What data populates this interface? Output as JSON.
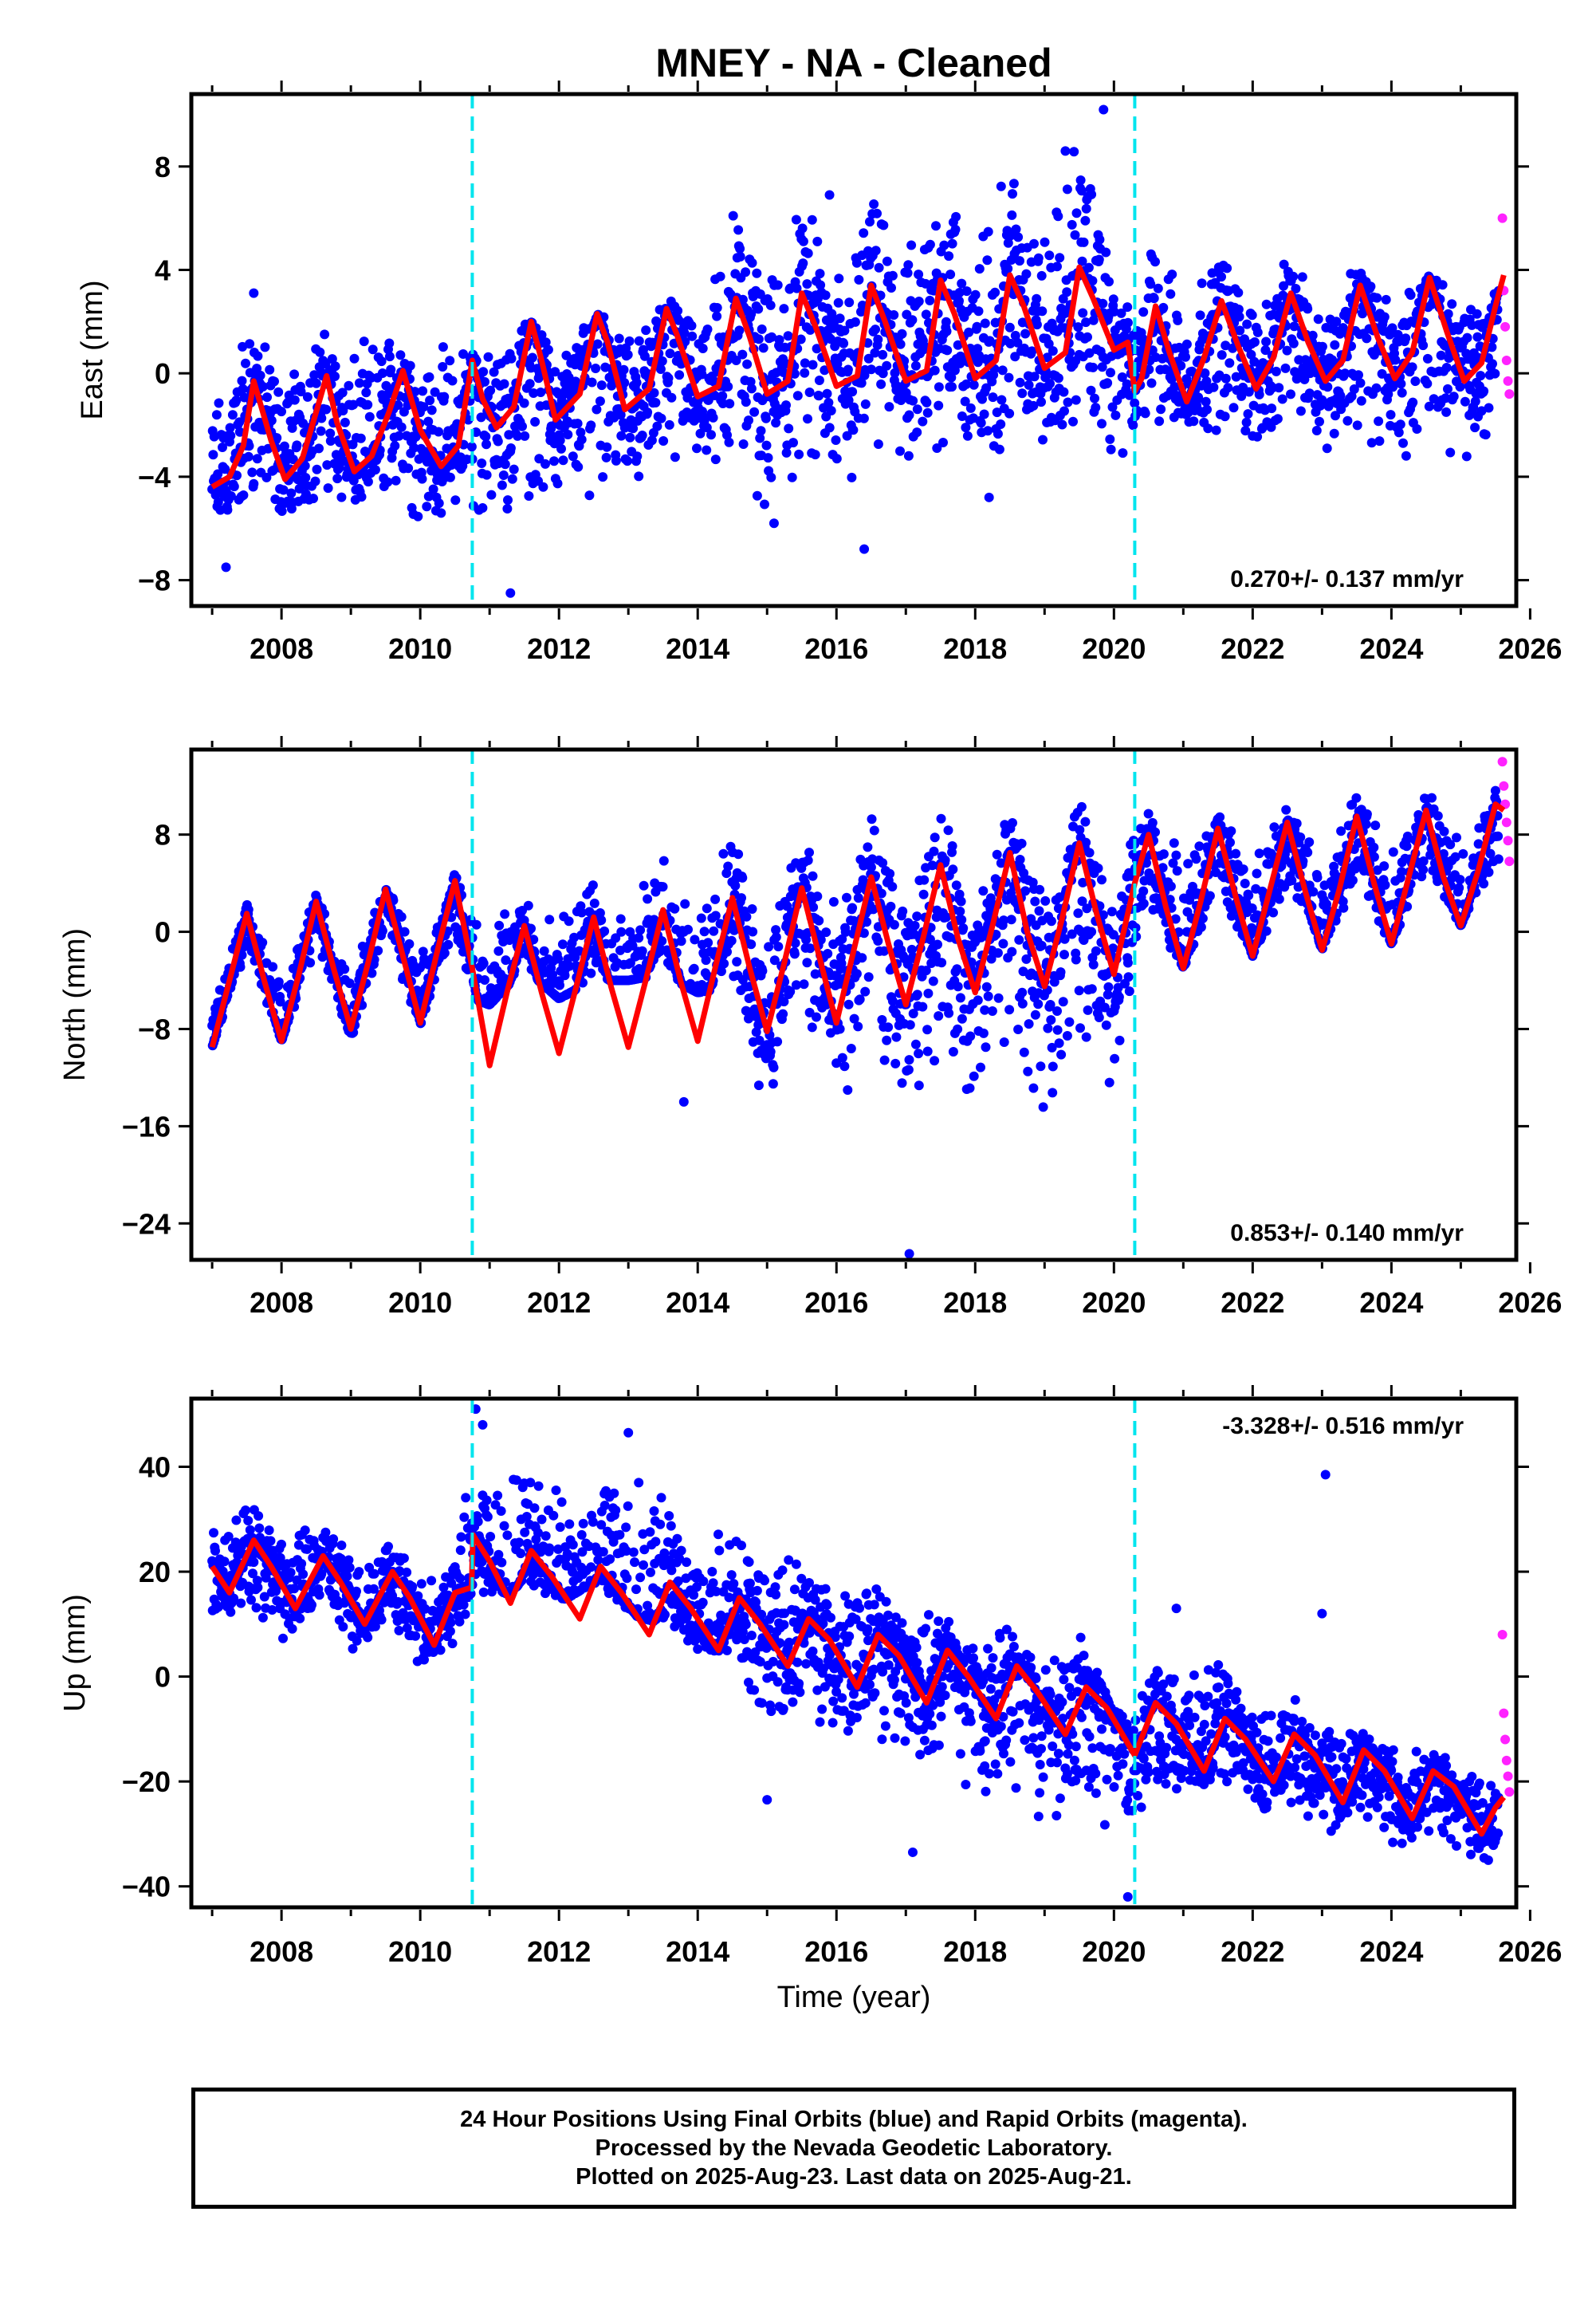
{
  "title": "MNEY  - NA - Cleaned",
  "xlabel": "Time (year)",
  "colors": {
    "final": "#0000ff",
    "rapid": "#ff22ff",
    "model": "#ff0000",
    "break": "#00e5ee"
  },
  "footer": [
    "24 Hour Positions Using Final Orbits (blue) and Rapid Orbits (magenta).",
    "Processed by the Nevada Geodetic Laboratory.",
    "Plotted on 2025-Aug-23. Last data on 2025-Aug-21."
  ],
  "chart_data": [
    {
      "type": "scatter",
      "ylabel": "East (mm)",
      "velocity_text": "0.270+/- 0.137 mm/yr",
      "velocity_placement": "bottom-right",
      "xlim": [
        2006.7,
        2025.8
      ],
      "ylim": [
        -9.0,
        10.8
      ],
      "xticks": [
        2008,
        2010,
        2012,
        2014,
        2016,
        2018,
        2020,
        2022,
        2024,
        2026
      ],
      "yticks": [
        -8,
        -4,
        0,
        4,
        8
      ],
      "ytick_labels": [
        "−8",
        "−4",
        "0",
        "4",
        "8"
      ],
      "breaks": [
        2010.75,
        2020.3
      ],
      "model": {
        "name": "model",
        "color": "#ff0000",
        "t": [
          2007.0,
          2007.25,
          2007.45,
          2007.6,
          2007.85,
          2008.05,
          2008.3,
          2008.5,
          2008.65,
          2008.8,
          2009.05,
          2009.3,
          2009.55,
          2009.75,
          2010.0,
          2010.3,
          2010.55,
          2010.75,
          2010.9,
          2011.1,
          2011.35,
          2011.6,
          2011.75,
          2011.95,
          2012.3,
          2012.55,
          2012.7,
          2012.95,
          2013.3,
          2013.55,
          2013.7,
          2014.0,
          2014.3,
          2014.55,
          2014.75,
          2015.0,
          2015.3,
          2015.5,
          2015.7,
          2016.0,
          2016.3,
          2016.5,
          2016.7,
          2017.0,
          2017.3,
          2017.5,
          2017.7,
          2018.0,
          2018.3,
          2018.5,
          2018.7,
          2019.0,
          2019.3,
          2019.5,
          2019.7,
          2020.0,
          2020.2,
          2020.3,
          2020.4,
          2020.6,
          2020.8,
          2021.05,
          2021.3,
          2021.55,
          2021.8,
          2022.05,
          2022.3,
          2022.55,
          2022.8,
          2023.05,
          2023.3,
          2023.55,
          2023.8,
          2024.05,
          2024.3,
          2024.55,
          2024.8,
          2025.05,
          2025.3,
          2025.5,
          2025.62
        ],
        "y": [
          -4.4,
          -4.0,
          -2.8,
          -0.3,
          -2.6,
          -4.1,
          -3.3,
          -1.5,
          -0.1,
          -1.9,
          -3.8,
          -3.2,
          -1.5,
          0.1,
          -2.2,
          -3.6,
          -2.8,
          0.5,
          -1.0,
          -2.1,
          -1.3,
          2.0,
          0.5,
          -1.8,
          -0.8,
          2.3,
          1.2,
          -1.4,
          -0.6,
          2.5,
          1.5,
          -0.9,
          -0.5,
          2.9,
          1.4,
          -0.8,
          -0.3,
          3.1,
          1.8,
          -0.5,
          -0.1,
          3.4,
          2.0,
          -0.3,
          0.1,
          3.6,
          2.3,
          -0.2,
          0.5,
          3.8,
          2.6,
          0.2,
          0.8,
          4.1,
          2.9,
          0.9,
          1.2,
          -0.7,
          -0.2,
          2.6,
          0.8,
          -1.1,
          0.6,
          2.8,
          1.0,
          -0.6,
          0.6,
          3.1,
          1.2,
          -0.3,
          0.5,
          3.4,
          1.4,
          -0.2,
          0.8,
          3.7,
          1.6,
          -0.3,
          0.4,
          2.6,
          3.8
        ]
      },
      "final_band": {
        "t": [
          2007.0,
          2007.5,
          2008.0,
          2008.5,
          2009.0,
          2009.5,
          2010.0,
          2010.5,
          2010.75,
          2011.0,
          2011.5,
          2012.0,
          2012.5,
          2013.0,
          2013.5,
          2014.0,
          2014.5,
          2015.0,
          2015.5,
          2016.0,
          2016.5,
          2017.0,
          2017.5,
          2018.0,
          2018.5,
          2019.0,
          2019.5,
          2020.0,
          2020.3,
          2020.5,
          2021.0,
          2021.5,
          2022.0,
          2022.5,
          2023.0,
          2023.5,
          2024.0,
          2024.5,
          2025.0,
          2025.55
        ],
        "lo": [
          -6.5,
          -5.5,
          -5.8,
          -5.2,
          -5.5,
          -5.0,
          -6.0,
          -5.2,
          -6.8,
          -6.0,
          -5.5,
          -5.2,
          -4.8,
          -4.5,
          -4.0,
          -3.5,
          -4.0,
          -5.5,
          -4.0,
          -6.0,
          -4.0,
          -4.5,
          -3.5,
          -4.0,
          -3.0,
          -3.5,
          -2.5,
          -4.0,
          -3.0,
          -2.5,
          -2.5,
          -2.5,
          -3.0,
          -2.5,
          -3.0,
          -3.0,
          -3.5,
          -3.0,
          -3.5,
          -3.5
        ],
        "hi": [
          -1.0,
          2.5,
          0.5,
          2.0,
          1.0,
          2.2,
          0.5,
          1.8,
          1.2,
          0.8,
          2.2,
          1.2,
          2.6,
          1.5,
          3.0,
          2.5,
          7.0,
          4.0,
          6.8,
          4.5,
          7.0,
          5.0,
          8.5,
          5.5,
          9.0,
          6.0,
          10.0,
          4.0,
          2.0,
          5.5,
          3.5,
          5.0,
          3.0,
          4.5,
          3.0,
          4.5,
          3.0,
          4.0,
          3.0,
          3.5
        ],
        "outliers": [
          [
            2011.3,
            -8.5
          ],
          [
            2007.2,
            -7.5
          ],
          [
            2019.85,
            10.2
          ],
          [
            2016.4,
            -6.8
          ],
          [
            2015.1,
            -5.8
          ],
          [
            2018.2,
            -4.8
          ],
          [
            2007.6,
            3.1
          ],
          [
            2015.9,
            6.9
          ],
          [
            2019.3,
            8.6
          ]
        ]
      },
      "rapid": {
        "t": [
          2025.6,
          2025.62,
          2025.64,
          2025.66,
          2025.68,
          2025.7
        ],
        "y": [
          6.0,
          3.2,
          1.8,
          0.5,
          -0.3,
          -0.8
        ]
      }
    },
    {
      "type": "scatter",
      "ylabel": "North (mm)",
      "velocity_text": "0.853+/- 0.140 mm/yr",
      "velocity_placement": "bottom-right",
      "xlim": [
        2006.7,
        2025.8
      ],
      "ylim": [
        -27.0,
        15.0
      ],
      "xticks": [
        2008,
        2010,
        2012,
        2014,
        2016,
        2018,
        2020,
        2022,
        2024,
        2026
      ],
      "yticks": [
        -24,
        -16,
        -8,
        0,
        8
      ],
      "ytick_labels": [
        "−24",
        "−16",
        "−8",
        "0",
        "8"
      ],
      "breaks": [
        2010.75,
        2020.3
      ],
      "model": {
        "name": "model",
        "color": "#ff0000",
        "t": [
          2007.0,
          2007.25,
          2007.5,
          2007.75,
          2008.0,
          2008.25,
          2008.5,
          2008.75,
          2009.0,
          2009.25,
          2009.5,
          2009.75,
          2010.0,
          2010.25,
          2010.5,
          2010.75,
          2011.0,
          2011.25,
          2011.5,
          2011.75,
          2012.0,
          2012.25,
          2012.5,
          2012.75,
          2013.0,
          2013.25,
          2013.5,
          2013.75,
          2014.0,
          2014.25,
          2014.5,
          2014.75,
          2015.0,
          2015.25,
          2015.5,
          2015.75,
          2016.0,
          2016.25,
          2016.5,
          2016.75,
          2017.0,
          2017.25,
          2017.5,
          2017.75,
          2018.0,
          2018.25,
          2018.5,
          2018.75,
          2019.0,
          2019.25,
          2019.5,
          2019.75,
          2020.0,
          2020.3,
          2020.5,
          2020.75,
          2021.0,
          2021.25,
          2021.5,
          2021.75,
          2022.0,
          2022.25,
          2022.5,
          2022.75,
          2023.0,
          2023.25,
          2023.5,
          2023.75,
          2024.0,
          2024.25,
          2024.5,
          2024.75,
          2025.0,
          2025.25,
          2025.5,
          2025.62
        ],
        "y": [
          -9.5,
          -4.0,
          1.5,
          -4.0,
          -9.0,
          -3.5,
          2.5,
          -3.0,
          -8.0,
          -2.5,
          3.5,
          -2.0,
          -7.5,
          -1.5,
          4.2,
          -3.0,
          -11.0,
          -5.0,
          0.5,
          -5.0,
          -10.0,
          -4.5,
          1.2,
          -4.5,
          -9.5,
          -4.0,
          1.8,
          -4.0,
          -9.0,
          -3.0,
          2.8,
          -3.0,
          -8.2,
          -2.5,
          3.6,
          -2.0,
          -7.5,
          -1.5,
          4.5,
          -1.0,
          -6.0,
          -0.5,
          5.5,
          -0.5,
          -5.0,
          0.5,
          6.5,
          0.0,
          -4.5,
          1.0,
          7.3,
          1.5,
          -3.5,
          4.0,
          8.0,
          2.0,
          -3.0,
          2.5,
          8.5,
          3.0,
          -2.0,
          3.5,
          9.0,
          3.5,
          -1.5,
          3.5,
          9.5,
          4.0,
          -1.0,
          4.5,
          10.0,
          4.5,
          0.5,
          5.0,
          10.5,
          10.0
        ]
      },
      "final_band": {
        "t": [
          2007.0,
          2007.5,
          2008.0,
          2008.5,
          2009.0,
          2009.5,
          2010.0,
          2010.5,
          2010.75,
          2011.0,
          2011.5,
          2012.0,
          2012.5,
          2013.0,
          2013.5,
          2014.0,
          2014.5,
          2015.0,
          2015.5,
          2016.0,
          2016.5,
          2017.0,
          2017.5,
          2018.0,
          2018.5,
          2019.0,
          2019.5,
          2020.0,
          2020.3,
          2020.5,
          2021.0,
          2021.5,
          2022.0,
          2022.5,
          2023.0,
          2023.5,
          2024.0,
          2024.5,
          2025.0,
          2025.55
        ],
        "lo": [
          -9.5,
          -2.0,
          -9.0,
          -1.5,
          -9.0,
          -1.0,
          -7.8,
          -0.5,
          -5.5,
          -6.0,
          -3.0,
          -5.5,
          -4.0,
          -4.0,
          -3.5,
          -5.0,
          -4.5,
          -15.5,
          -8.0,
          -16.0,
          -9.0,
          -17.0,
          -10.0,
          -17.5,
          -11.0,
          -16.5,
          -10.0,
          -14.0,
          -3.0,
          1.0,
          -3.0,
          2.0,
          -2.0,
          3.0,
          -1.5,
          3.0,
          -1.0,
          3.5,
          0.5,
          5.0
        ],
        "hi": [
          -5.0,
          2.5,
          -3.5,
          3.5,
          -3.0,
          4.5,
          -2.0,
          5.0,
          2.0,
          1.0,
          4.5,
          1.5,
          6.0,
          1.5,
          8.0,
          2.0,
          9.0,
          1.0,
          10.0,
          2.0,
          10.5,
          2.0,
          11.0,
          2.0,
          11.5,
          2.5,
          12.0,
          3.0,
          9.0,
          10.0,
          7.0,
          10.0,
          7.0,
          11.0,
          7.0,
          11.5,
          8.0,
          12.0,
          9.0,
          13.0
        ],
        "outliers": [
          [
            2017.05,
            -26.5
          ],
          [
            2013.8,
            -14.0
          ]
        ]
      },
      "rapid": {
        "t": [
          2025.6,
          2025.62,
          2025.64,
          2025.66,
          2025.68,
          2025.7
        ],
        "y": [
          14.0,
          12.0,
          10.5,
          9.0,
          7.5,
          5.8
        ]
      }
    },
    {
      "type": "scatter",
      "ylabel": "Up (mm)",
      "velocity_text": "-3.328+/- 0.516 mm/yr",
      "velocity_placement": "top-right",
      "xlim": [
        2006.7,
        2025.8
      ],
      "ylim": [
        -44.0,
        53.0
      ],
      "xticks": [
        2008,
        2010,
        2012,
        2014,
        2016,
        2018,
        2020,
        2022,
        2024,
        2026
      ],
      "yticks": [
        -40,
        -20,
        0,
        20,
        40
      ],
      "ytick_labels": [
        "−40",
        "−20",
        "0",
        "20",
        "40"
      ],
      "breaks": [
        2010.75,
        2020.3
      ],
      "model": {
        "name": "model",
        "color": "#ff0000",
        "t": [
          2007.0,
          2007.25,
          2007.6,
          2007.85,
          2008.2,
          2008.6,
          2008.85,
          2009.2,
          2009.6,
          2009.85,
          2010.2,
          2010.5,
          2010.74,
          2010.76,
          2011.0,
          2011.3,
          2011.6,
          2011.9,
          2012.3,
          2012.6,
          2012.9,
          2013.3,
          2013.6,
          2013.9,
          2014.3,
          2014.6,
          2014.9,
          2015.3,
          2015.6,
          2015.9,
          2016.3,
          2016.6,
          2016.9,
          2017.3,
          2017.6,
          2017.9,
          2018.3,
          2018.6,
          2018.9,
          2019.3,
          2019.6,
          2019.9,
          2020.3,
          2020.6,
          2020.9,
          2021.3,
          2021.6,
          2021.9,
          2022.3,
          2022.6,
          2022.9,
          2023.3,
          2023.6,
          2023.9,
          2024.3,
          2024.6,
          2024.9,
          2025.3,
          2025.5,
          2025.62
        ],
        "y": [
          21.0,
          16.0,
          26.0,
          21.0,
          13.0,
          23.0,
          18.0,
          10.0,
          20.0,
          15.0,
          6.0,
          16.0,
          17.0,
          27.0,
          22.0,
          14.0,
          24.0,
          19.0,
          11.0,
          21.0,
          16.0,
          8.0,
          18.0,
          13.0,
          5.0,
          15.0,
          10.0,
          2.0,
          11.0,
          7.0,
          -2.0,
          8.0,
          4.0,
          -5.0,
          5.0,
          0.0,
          -8.0,
          2.0,
          -3.0,
          -11.0,
          -2.0,
          -6.0,
          -15.0,
          -5.0,
          -9.0,
          -18.0,
          -8.0,
          -12.0,
          -20.0,
          -11.0,
          -15.0,
          -24.0,
          -14.0,
          -18.0,
          -27.0,
          -18.0,
          -21.0,
          -30.0,
          -25.0,
          -23.0
        ]
      },
      "final_band": {
        "t": [
          2007.0,
          2007.5,
          2008.0,
          2008.5,
          2009.0,
          2009.5,
          2010.0,
          2010.5,
          2010.75,
          2011.0,
          2011.5,
          2012.0,
          2012.5,
          2013.0,
          2013.5,
          2014.0,
          2014.5,
          2015.0,
          2015.5,
          2016.0,
          2016.5,
          2017.0,
          2017.5,
          2018.0,
          2018.5,
          2019.0,
          2019.5,
          2020.0,
          2020.3,
          2020.5,
          2021.0,
          2021.5,
          2022.0,
          2022.5,
          2023.0,
          2023.5,
          2024.0,
          2024.5,
          2025.0,
          2025.55
        ],
        "lo": [
          8.0,
          14.0,
          6.0,
          12.0,
          4.0,
          10.0,
          -1.0,
          6.0,
          14.0,
          14.0,
          18.0,
          14.0,
          18.0,
          12.0,
          10.0,
          2.0,
          4.0,
          -10.0,
          -5.0,
          -15.0,
          -10.0,
          -20.0,
          -15.0,
          -25.0,
          -20.0,
          -30.0,
          -25.0,
          -35.0,
          -30.0,
          -22.0,
          -25.0,
          -20.0,
          -28.0,
          -24.0,
          -32.0,
          -28.0,
          -34.0,
          -30.0,
          -35.0,
          -38.0
        ],
        "hi": [
          30.0,
          36.0,
          26.0,
          32.0,
          24.0,
          28.0,
          18.0,
          26.0,
          42.0,
          38.0,
          42.0,
          38.0,
          40.0,
          44.0,
          35.0,
          28.0,
          30.0,
          20.0,
          25.0,
          15.0,
          22.0,
          10.0,
          16.0,
          5.0,
          12.0,
          2.0,
          10.0,
          -5.0,
          -8.0,
          2.0,
          0.0,
          4.0,
          -5.0,
          -3.0,
          -8.0,
          -8.0,
          -12.0,
          -14.0,
          -16.0,
          -20.0
        ],
        "outliers": [
          [
            2010.8,
            51.0
          ],
          [
            2010.9,
            48.0
          ],
          [
            2013.0,
            46.5
          ],
          [
            2023.05,
            38.5
          ],
          [
            2023.0,
            12.0
          ],
          [
            2020.9,
            13.0
          ],
          [
            2017.1,
            -33.5
          ],
          [
            2015.0,
            -23.5
          ],
          [
            2020.2,
            -42.0
          ]
        ]
      },
      "rapid": {
        "t": [
          2025.6,
          2025.62,
          2025.64,
          2025.66,
          2025.68,
          2025.7
        ],
        "y": [
          8.0,
          -7.0,
          -12.0,
          -16.0,
          -19.0,
          -22.0
        ]
      }
    }
  ]
}
